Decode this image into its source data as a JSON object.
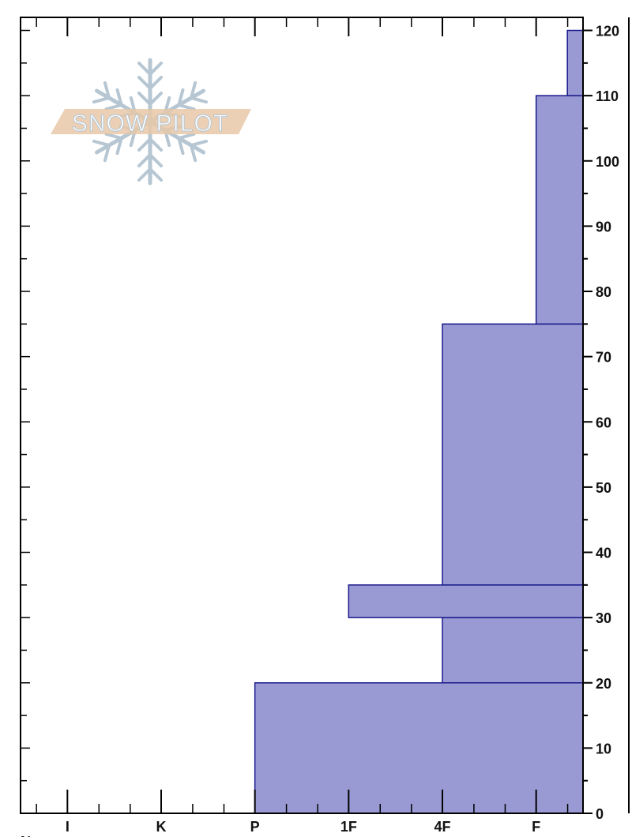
{
  "chart_data": {
    "type": "bar",
    "orientation": "horizontal-step",
    "title": "",
    "xlabel": "",
    "ylabel": "",
    "x_tick_labels": [
      "I",
      "K",
      "P",
      "1F",
      "4F",
      "F"
    ],
    "x_tick_values": [
      6,
      5,
      4,
      3,
      2,
      1
    ],
    "xlim": [
      6.5,
      0.5
    ],
    "ylim": [
      0,
      122
    ],
    "y_ticks": [
      0,
      10,
      20,
      30,
      40,
      50,
      60,
      70,
      80,
      90,
      100,
      110,
      120
    ],
    "y_axis_position": "right",
    "grid": false,
    "layers": [
      {
        "bottom": 0,
        "top": 20,
        "hardness": "P"
      },
      {
        "bottom": 20,
        "top": 30,
        "hardness": "4F"
      },
      {
        "bottom": 30,
        "top": 35,
        "hardness": "1F"
      },
      {
        "bottom": 35,
        "top": 75,
        "hardness": "4F"
      },
      {
        "bottom": 75,
        "top": 110,
        "hardness": "F"
      },
      {
        "bottom": 110,
        "top": 120,
        "hardness": "F-"
      }
    ],
    "colors": {
      "fill": "#9999d3",
      "stroke": "#1a1a8c"
    }
  },
  "logo": {
    "text": "SNOW PILOT",
    "band_color": "#e8c8a8",
    "flake_color": "#b6c6d2"
  },
  "footer_fragment": "N"
}
